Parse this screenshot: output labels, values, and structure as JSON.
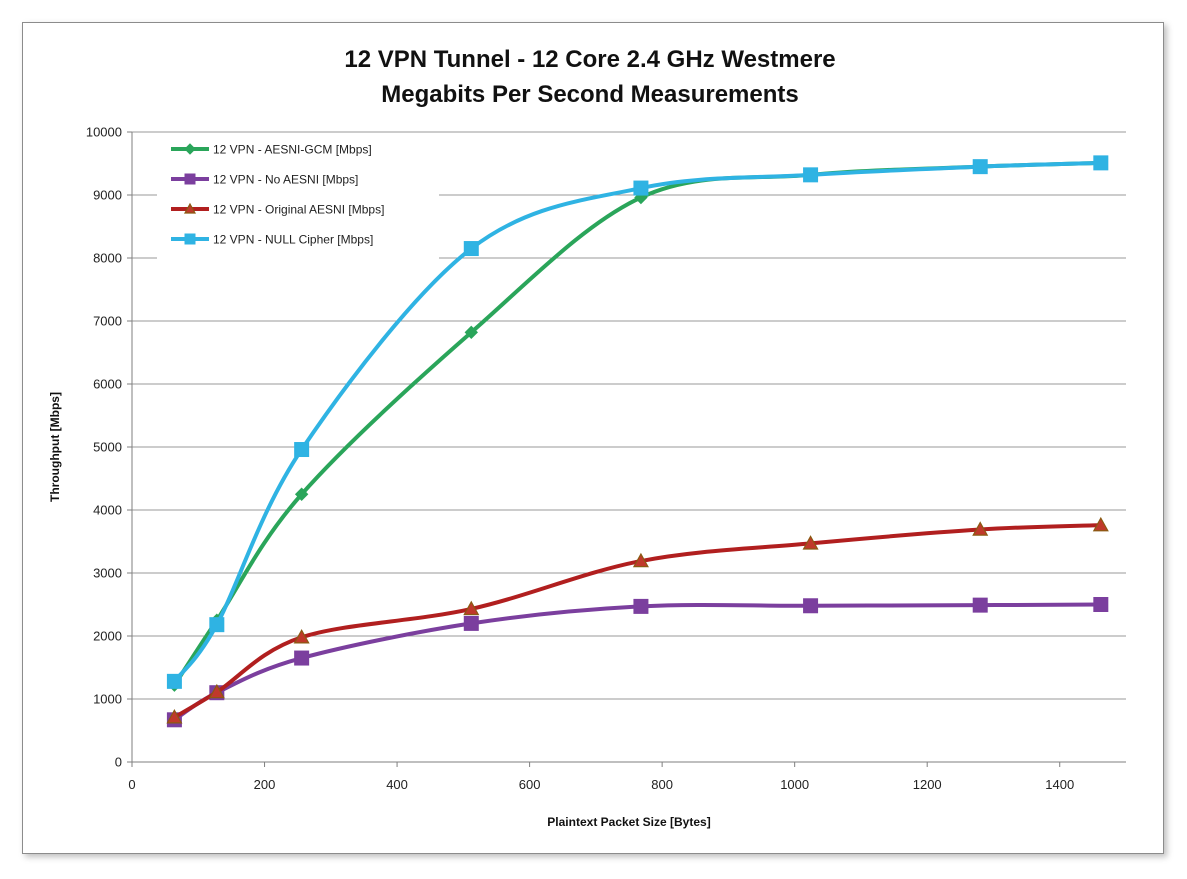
{
  "chart_data": {
    "type": "line",
    "title_lines": [
      "12 VPN Tunnel - 12 Core 2.4 GHz Westmere",
      "Megabits Per Second Measurements"
    ],
    "xlabel": "Plaintext Packet Size [Bytes]",
    "ylabel": "Throughput [Mbps]",
    "xlim": [
      0,
      1500
    ],
    "ylim": [
      0,
      10000
    ],
    "x_ticks": [
      0,
      200,
      400,
      600,
      800,
      1000,
      1200,
      1400
    ],
    "y_ticks": [
      0,
      1000,
      2000,
      3000,
      4000,
      5000,
      6000,
      7000,
      8000,
      9000,
      10000
    ],
    "grid": "horizontal",
    "legend_position": "top-left",
    "x": [
      64,
      128,
      256,
      512,
      768,
      1024,
      1280,
      1462
    ],
    "series": [
      {
        "name": "12 VPN - AESNI-GCM [Mbps]",
        "color": "#2aa55a",
        "marker": "diamond",
        "values": [
          1220,
          2250,
          4250,
          6820,
          8960,
          9320,
          9450,
          9510
        ]
      },
      {
        "name": "12 VPN - No AESNI [Mbps]",
        "color": "#7b3f9e",
        "marker": "square",
        "values": [
          670,
          1100,
          1650,
          2200,
          2470,
          2480,
          2490,
          2500
        ]
      },
      {
        "name": "12 VPN - Original AESNI [Mbps]",
        "color": "#b11f1f",
        "marker": "triangle",
        "values": [
          710,
          1110,
          1980,
          2430,
          3190,
          3470,
          3690,
          3760
        ]
      },
      {
        "name": "12 VPN - NULL Cipher [Mbps]",
        "color": "#2fb3e3",
        "marker": "square",
        "values": [
          1280,
          2180,
          4960,
          8150,
          9110,
          9320,
          9450,
          9510
        ]
      }
    ]
  }
}
